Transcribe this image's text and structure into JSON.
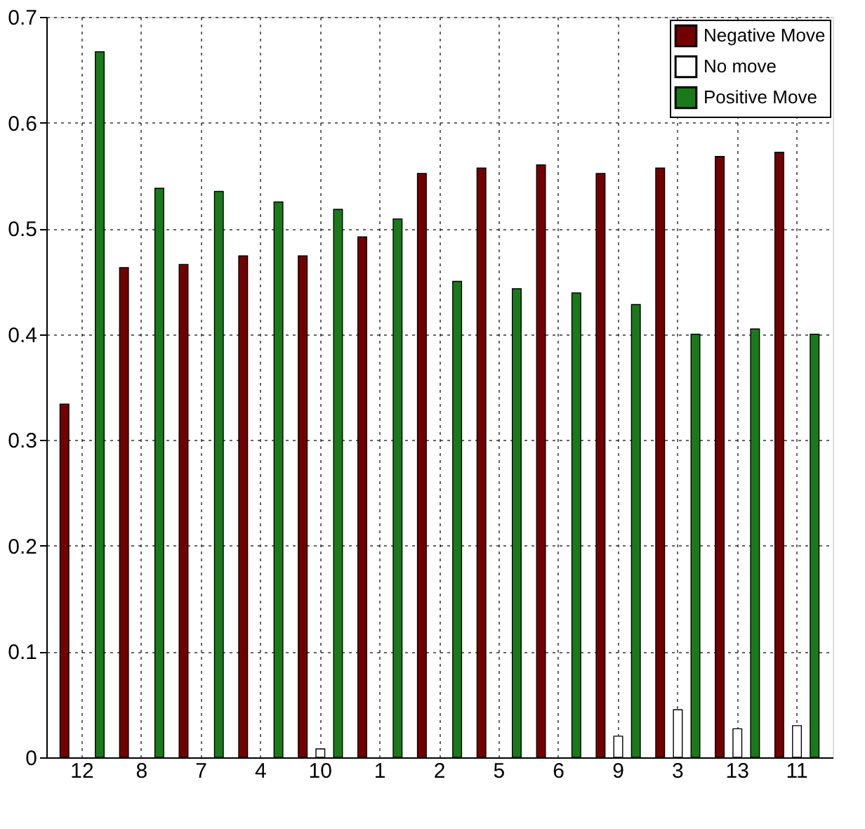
{
  "chart_data": {
    "type": "bar",
    "categories": [
      "12",
      "8",
      "7",
      "4",
      "10",
      "1",
      "2",
      "5",
      "6",
      "9",
      "3",
      "13",
      "11"
    ],
    "series": [
      {
        "name": "Negative Move",
        "color": "#730000",
        "values": [
          0.334,
          0.463,
          0.466,
          0.474,
          0.474,
          0.492,
          0.552,
          0.557,
          0.56,
          0.552,
          0.557,
          0.568,
          0.572
        ]
      },
      {
        "name": "No move",
        "color": "#ffffff",
        "values": [
          null,
          null,
          null,
          null,
          0.008,
          null,
          null,
          null,
          null,
          0.02,
          0.045,
          0.027,
          0.03
        ]
      },
      {
        "name": "Positive Move",
        "color": "#1a7a1a",
        "values": [
          0.667,
          0.538,
          0.535,
          0.525,
          0.518,
          0.509,
          0.45,
          0.443,
          0.439,
          0.428,
          0.4,
          0.405,
          0.4
        ]
      }
    ],
    "ylim": [
      0,
      0.7
    ],
    "yticks": [
      {
        "value": 0,
        "label": "0"
      },
      0.1,
      0.2,
      0.3,
      0.4,
      0.5,
      0.6,
      0.7
    ],
    "grid": true,
    "legend": "top right"
  }
}
